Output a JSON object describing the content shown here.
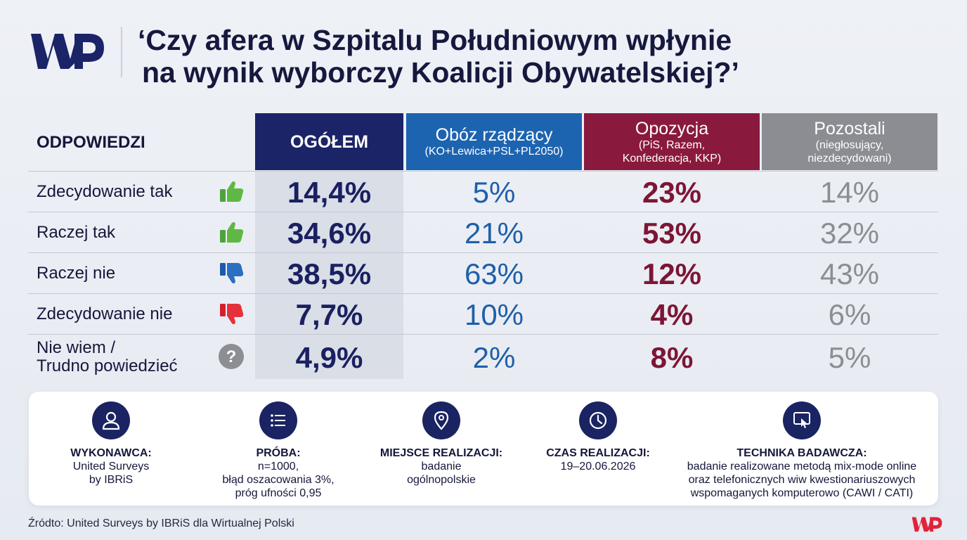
{
  "brand": {
    "logo_text": "WP",
    "logo_color": "#1b2466",
    "small_logo_color": "#e2223b"
  },
  "title": {
    "line1": "‘Czy afera w Szpitalu Południowym wpłynie",
    "line2": "na wynik wyborczy Koalicji Obywatelskiej?’"
  },
  "table": {
    "answers_header": "ODPOWIEDZI",
    "columns": [
      {
        "main": "OGÓŁEM",
        "sub": "",
        "color": "#1b2466"
      },
      {
        "main": "Obóz rządzący",
        "sub": "(KO+Lewica+PSL+PL2050)",
        "color": "#1d64b0"
      },
      {
        "main": "Opozycja",
        "sub": "(PiS, Razem,\nKonfederacja, KKP)",
        "sub1": "(PiS, Razem,",
        "sub2": "Konfederacja, KKP)",
        "color": "#8a1a3d"
      },
      {
        "main": "Pozostali",
        "sub1": "(niegłosujący,",
        "sub2": "niezdecydowani)",
        "color": "#8b8d93"
      }
    ],
    "rows": [
      {
        "label": "Zdecydowanie tak",
        "icon": "thumbs-up-icon",
        "values": [
          "14,4%",
          "5%",
          "23%",
          "14%"
        ]
      },
      {
        "label": "Raczej tak",
        "icon": "thumbs-up-icon",
        "values": [
          "34,6%",
          "21%",
          "53%",
          "32%"
        ]
      },
      {
        "label": "Raczej nie",
        "icon": "thumbs-down-icon",
        "values": [
          "38,5%",
          "63%",
          "12%",
          "43%"
        ]
      },
      {
        "label": "Zdecydowanie nie",
        "icon": "thumbs-down-icon",
        "values": [
          "7,7%",
          "10%",
          "4%",
          "6%"
        ]
      },
      {
        "label1": "Nie wiem /",
        "label2": "Trudno powiedzieć",
        "icon": "question-icon",
        "values": [
          "4,9%",
          "2%",
          "8%",
          "5%"
        ]
      }
    ]
  },
  "chart_data": {
    "type": "table",
    "title": "‘Czy afera w Szpitalu Południowym wpłynie na wynik wyborczy Koalicji Obywatelskiej?’",
    "categories": [
      "Zdecydowanie tak",
      "Raczej tak",
      "Raczej nie",
      "Zdecydowanie nie",
      "Nie wiem / Trudno powiedzieć"
    ],
    "series": [
      {
        "name": "OGÓŁEM",
        "values": [
          14.4,
          34.6,
          38.5,
          7.7,
          4.9
        ]
      },
      {
        "name": "Obóz rządzący",
        "values": [
          5,
          21,
          63,
          10,
          2
        ]
      },
      {
        "name": "Opozycja",
        "values": [
          23,
          53,
          12,
          4,
          8
        ]
      },
      {
        "name": "Pozostali",
        "values": [
          14,
          32,
          43,
          6,
          5
        ]
      }
    ]
  },
  "info": [
    {
      "icon": "person-icon",
      "label": "WYKONAWCA:",
      "lines": [
        "United Surveys",
        "by IBRiS"
      ]
    },
    {
      "icon": "list-icon",
      "label": "PRÓBA:",
      "lines": [
        "n=1000,",
        "błąd oszacowania 3%,",
        "próg ufności 0,95"
      ]
    },
    {
      "icon": "location-pin-icon",
      "label": "MIEJSCE REALIZACJI:",
      "lines": [
        "badanie",
        "ogólnopolskie"
      ]
    },
    {
      "icon": "clock-icon",
      "label": "CZAS REALIZACJI:",
      "lines": [
        "19–20.06.2026"
      ]
    },
    {
      "icon": "touch-screen-icon",
      "label": "TECHNIKA BADAWCZA:",
      "lines": [
        "badanie realizowane metodą mix-mode online",
        "oraz telefonicznych wiw kwestionariuszowych",
        "wspomaganych komputerowo (CAWI / CATI)"
      ]
    }
  ],
  "source": "Źródto: United Surveys by IBRiS dla Wirtualnej Polski"
}
